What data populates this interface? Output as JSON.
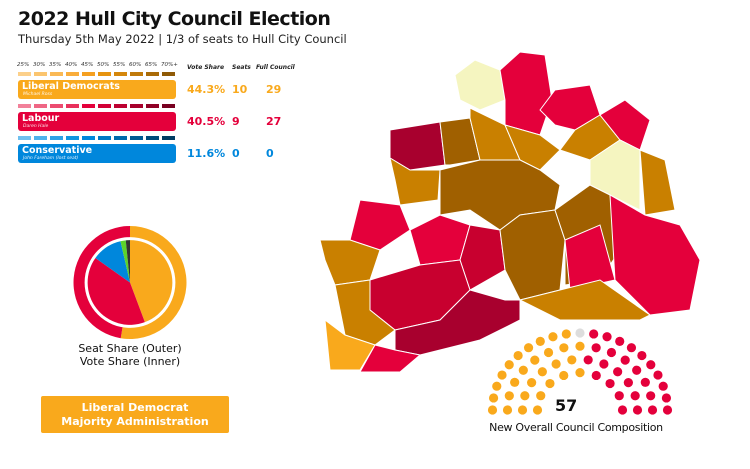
{
  "header": {
    "title": "2022 Hull City Council Election",
    "subtitle": "Thursday 5th May 2022 | 1/3 of seats to Hull City Council"
  },
  "scale_ticks": [
    "25%",
    "30%",
    "35%",
    "40%",
    "45%",
    "50%",
    "55%",
    "60%",
    "65%",
    "70%+"
  ],
  "columns": {
    "vote_share": "Vote Share",
    "seats": "Seats",
    "full_council": "Full Council"
  },
  "parties": [
    {
      "name": "Liberal Democrats",
      "leader": "Michael Ross",
      "vote_share": "44.3%",
      "seats": "10",
      "full_council": "29",
      "color": "#f9a91c",
      "scale": [
        "#fcd08a",
        "#fbc56f",
        "#fab955",
        "#f9ad3b",
        "#f5a020",
        "#e69410",
        "#d4870c",
        "#c07a0a",
        "#a96b08",
        "#8f5a06"
      ]
    },
    {
      "name": "Labour",
      "leader": "Daren Hale",
      "vote_share": "40.5%",
      "seats": "9",
      "full_council": "27",
      "color": "#e4003b",
      "scale": [
        "#f2819a",
        "#ef6685",
        "#ec4c70",
        "#e9315c",
        "#e4003b",
        "#d20036",
        "#bd0031",
        "#a7002c",
        "#900026",
        "#780020"
      ]
    },
    {
      "name": "Conservative",
      "leader": "John Fareham (lost seat)",
      "vote_share": "11.6%",
      "seats": "0",
      "full_council": "0",
      "color": "#0087dc",
      "scale": [
        "#6fc0ef",
        "#4fb2eb",
        "#2fa3e7",
        "#1296e0",
        "#0087dc",
        "#0078c4",
        "#0069ab",
        "#005a93",
        "#004b7a",
        "#003c62"
      ]
    }
  ],
  "chart_data": {
    "type": "pie",
    "title": "",
    "legend": [
      "Seat Share (Outer)",
      "Vote Share (Inner)"
    ],
    "outer_seat_share": [
      {
        "party": "Liberal Democrats",
        "value": 10,
        "color": "#f9a91c"
      },
      {
        "party": "Labour",
        "value": 9,
        "color": "#e4003b"
      }
    ],
    "inner_vote_share": [
      {
        "party": "Liberal Democrats",
        "value": 44.3,
        "color": "#f9a91c"
      },
      {
        "party": "Labour",
        "value": 40.5,
        "color": "#e4003b"
      },
      {
        "party": "Conservative",
        "value": 11.6,
        "color": "#0087dc"
      },
      {
        "value": 2.0,
        "color": "#5cd22b"
      },
      {
        "value": 1.6,
        "color": "#333333"
      }
    ]
  },
  "composition": {
    "total": "57",
    "caption": "New Overall Council Composition",
    "groups": [
      {
        "party": "Liberal Democrats",
        "seats": 29,
        "color": "#f9a91c"
      },
      {
        "party": "Vacant",
        "seats": 1,
        "color": "#dddddd"
      },
      {
        "party": "Labour",
        "seats": 27,
        "color": "#e4003b"
      }
    ]
  },
  "majority": {
    "line1": "Liberal Democrat",
    "line2": "Majority Administration"
  },
  "map_colors": {
    "ld_dark": "#a06000",
    "ld_mid": "#c98000",
    "ld_light": "#f9a91c",
    "lab_dark": "#a8002e",
    "lab": "#e4003b",
    "lab_mid": "#c8002f",
    "not_contested": "#f5f5c0"
  }
}
